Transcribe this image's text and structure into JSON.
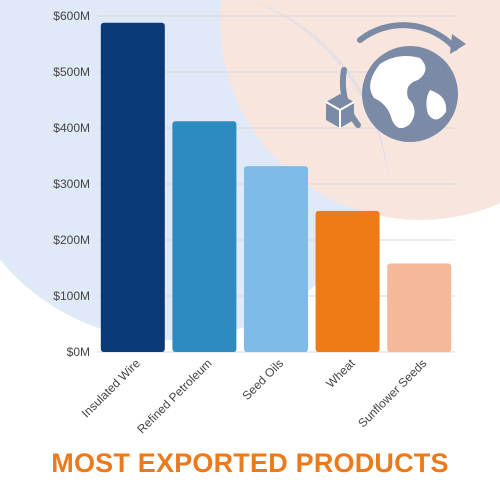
{
  "chart_data": {
    "type": "bar",
    "title": "MOST EXPORTED PRODUCTS",
    "categories": [
      "Insulated Wire",
      "Refined Petroleum",
      "Seed Oils",
      "Wheat",
      "Sunflower Seeds"
    ],
    "values": [
      588,
      412,
      332,
      252,
      158
    ],
    "yticks": [
      "$0M",
      "$100M",
      "$200M",
      "$300M",
      "$400M",
      "$500M",
      "$600M"
    ],
    "ylim": [
      0,
      600
    ],
    "grid": true,
    "colors": [
      "#0b3a78",
      "#2e8bbf",
      "#7fbbe8",
      "#ee7b16",
      "#f5b89a"
    ]
  },
  "icon": {
    "name": "globe-refresh-icon"
  }
}
